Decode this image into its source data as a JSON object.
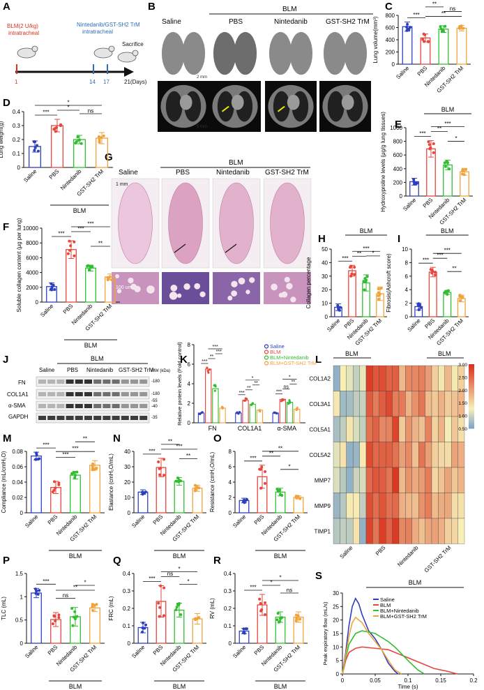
{
  "panels": {
    "A": {
      "letter": "A",
      "induction": "BLM(2 U/kg)",
      "induction_route": "intratracheal",
      "treatment": "Nintedanib/GST-SH2 TrM",
      "treatment_route": "intratracheal",
      "end": "Sacrifice",
      "day_1": "1",
      "day_14": "14",
      "day_17": "17",
      "day_end": "21(Days)"
    },
    "B": {
      "letter": "B",
      "group_bar": "BLM",
      "columns": [
        "Saline",
        "PBS",
        "Nintedanib",
        "GST-SH2 TrM"
      ],
      "scale_top": "2 mm",
      "scale_bottom": "5 mm"
    },
    "G": {
      "letter": "G",
      "group_bar": "BLM",
      "columns": [
        "Saline",
        "PBS",
        "Nintedanib",
        "GST-SH2 TrM"
      ],
      "scale_top": "1 mm",
      "scale_bottom": "100 um"
    },
    "J": {
      "letter": "J",
      "columns": [
        "Saline",
        "PBS",
        "Nintedanib",
        "GST-SH2 TrM"
      ],
      "group_bar": "BLM",
      "rows": [
        "FN",
        "COL1A1",
        "α-SMA",
        "GAPDH"
      ],
      "mw_header": "MW (kDa)",
      "mw": [
        "-180",
        "-180",
        "-55",
        "-40",
        "-35"
      ]
    },
    "L": {
      "letter": "L",
      "genes": [
        "COL1A2",
        "COL3A1",
        "COL5A1",
        "COL5A2",
        "MMP7",
        "MMP9",
        "TIMP1"
      ],
      "group_bar": "BLM",
      "groups": [
        "Saline",
        "PBS",
        "Nintedanib",
        "GST-SH2 TrM"
      ],
      "colorbar": [
        "3.00",
        "2.50",
        "2.00",
        "1.50",
        "1.00",
        "0.50"
      ],
      "colors": {
        "low": "#7fa6c9",
        "mid": "#f7f0b8",
        "high": "#d9331e"
      }
    }
  },
  "groups": [
    "Saline",
    "PBS",
    "Nintedanib",
    "GST-SH2 TrM"
  ],
  "group_colors": [
    "#2b3fbf",
    "#e8453c",
    "#2fbe2f",
    "#f0a33a"
  ],
  "blm_label": "BLM",
  "chart_data": [
    {
      "id": "C",
      "type": "bar",
      "ylabel": "Lung volume(mm³)",
      "ylim": [
        0,
        800
      ],
      "yticks": [
        0,
        200,
        400,
        600,
        800
      ],
      "values": [
        615,
        430,
        575,
        590
      ],
      "errors": [
        75,
        65,
        55,
        45
      ],
      "sig": [
        {
          "a": 0,
          "b": 1,
          "t": "***"
        },
        {
          "a": 1,
          "b": 3,
          "t": "**"
        },
        {
          "a": 2,
          "b": 3,
          "t": "ns"
        },
        {
          "a": 1,
          "b": 2,
          "t": "**"
        }
      ]
    },
    {
      "id": "D",
      "type": "bar",
      "ylabel": "Lung weight(g)",
      "ylim": [
        0,
        0.4
      ],
      "yticks": [
        0,
        0.1,
        0.2,
        0.3,
        0.4
      ],
      "values": [
        0.15,
        0.3,
        0.2,
        0.21
      ],
      "errors": [
        0.04,
        0.045,
        0.03,
        0.04
      ],
      "sig": [
        {
          "a": 0,
          "b": 1,
          "t": "***"
        },
        {
          "a": 1,
          "b": 2,
          "t": "*"
        },
        {
          "a": 0,
          "b": 3,
          "t": "*"
        },
        {
          "a": 2,
          "b": 3,
          "t": "ns"
        }
      ]
    },
    {
      "id": "E",
      "type": "bar",
      "ylabel": "Hydroxyproline levels (μg/g lung tissues)",
      "ylim": [
        0,
        1000
      ],
      "yticks": [
        0,
        200,
        400,
        600,
        800,
        1000
      ],
      "values": [
        210,
        690,
        455,
        355
      ],
      "errors": [
        50,
        120,
        70,
        50
      ],
      "sig": [
        {
          "a": 0,
          "b": 1,
          "t": "***"
        },
        {
          "a": 1,
          "b": 2,
          "t": "**"
        },
        {
          "a": 1,
          "b": 3,
          "t": "***"
        },
        {
          "a": 2,
          "b": 3,
          "t": "*"
        }
      ]
    },
    {
      "id": "F",
      "type": "bar",
      "ylabel": "Soluble collagen content (μg per lung)",
      "ylim": [
        0,
        10000
      ],
      "yticks": [
        0,
        2000,
        4000,
        6000,
        8000,
        10000
      ],
      "values": [
        2100,
        7100,
        4600,
        3400
      ],
      "errors": [
        500,
        1200,
        400,
        400
      ],
      "sig": [
        {
          "a": 0,
          "b": 1,
          "t": "***"
        },
        {
          "a": 1,
          "b": 2,
          "t": "***"
        },
        {
          "a": 1,
          "b": 3,
          "t": "***"
        },
        {
          "a": 2,
          "b": 3,
          "t": "**"
        }
      ]
    },
    {
      "id": "H",
      "type": "bar",
      "ylabel": "Collagen percentage",
      "ylim": [
        0,
        50
      ],
      "yticks": [
        0,
        10,
        20,
        30,
        40,
        50
      ],
      "values": [
        7,
        34,
        25,
        17
      ],
      "errors": [
        2.5,
        4,
        6,
        5
      ],
      "sig": [
        {
          "a": 0,
          "b": 1,
          "t": "***"
        },
        {
          "a": 1,
          "b": 2,
          "t": "**"
        },
        {
          "a": 1,
          "b": 3,
          "t": "***"
        },
        {
          "a": 2,
          "b": 3,
          "t": "*"
        }
      ]
    },
    {
      "id": "I",
      "type": "bar",
      "ylabel": "Fibrosis(Ashcroft score)",
      "ylim": [
        0,
        10
      ],
      "yticks": [
        0,
        2,
        4,
        6,
        8,
        10
      ],
      "values": [
        1.5,
        6.6,
        3.6,
        2.7
      ],
      "errors": [
        0.5,
        0.7,
        0.3,
        0.5
      ],
      "sig": [
        {
          "a": 0,
          "b": 1,
          "t": "***"
        },
        {
          "a": 1,
          "b": 2,
          "t": "***"
        },
        {
          "a": 1,
          "b": 3,
          "t": "***"
        },
        {
          "a": 2,
          "b": 3,
          "t": "**"
        }
      ]
    },
    {
      "id": "K",
      "type": "bar",
      "ylabel": "Relative protein levels (Fold control)",
      "ylim": [
        0,
        8
      ],
      "yticks": [
        0,
        2,
        4,
        6,
        8
      ],
      "categories": [
        "FN",
        "COL1A1",
        "α-SMA"
      ],
      "legend": [
        "Saline",
        "BLM",
        "BLM+Nintedanib",
        "BLM+GST-SH2 TrM"
      ],
      "series": [
        {
          "name": "Saline",
          "values": [
            1.0,
            1.0,
            1.0
          ]
        },
        {
          "name": "BLM",
          "values": [
            5.5,
            2.3,
            2.4
          ]
        },
        {
          "name": "BLM+Nintedanib",
          "values": [
            3.5,
            1.9,
            2.1
          ]
        },
        {
          "name": "BLM+GST-SH2 TrM",
          "values": [
            1.5,
            1.3,
            1.4
          ]
        }
      ],
      "sig_labels": [
        "***",
        "**",
        "***",
        "***",
        "***",
        "**",
        "**",
        "*",
        "***",
        "ns",
        "**",
        "*"
      ]
    },
    {
      "id": "M",
      "type": "bar",
      "ylabel": "Compliance (mL/cmH₂O)",
      "ylim": [
        0,
        0.08
      ],
      "yticks": [
        0,
        0.02,
        0.04,
        0.06,
        0.08
      ],
      "values": [
        0.074,
        0.033,
        0.049,
        0.062
      ],
      "errors": [
        0.005,
        0.008,
        0.005,
        0.006
      ],
      "sig": [
        {
          "a": 0,
          "b": 1,
          "t": "***"
        },
        {
          "a": 1,
          "b": 3,
          "t": "***"
        },
        {
          "a": 1,
          "b": 2,
          "t": "***"
        },
        {
          "a": 2,
          "b": 3,
          "t": "**"
        }
      ]
    },
    {
      "id": "N",
      "type": "bar",
      "ylabel": "Elastance (cmH₂O/mL)",
      "ylim": [
        0,
        40
      ],
      "yticks": [
        0,
        10,
        20,
        30,
        40
      ],
      "values": [
        13.5,
        29.5,
        20.5,
        16
      ],
      "errors": [
        1.5,
        6,
        2.5,
        2
      ],
      "sig": [
        {
          "a": 0,
          "b": 1,
          "t": "***"
        },
        {
          "a": 1,
          "b": 3,
          "t": "***"
        },
        {
          "a": 1,
          "b": 2,
          "t": "**"
        },
        {
          "a": 2,
          "b": 3,
          "t": "**"
        }
      ]
    },
    {
      "id": "O",
      "type": "bar",
      "ylabel": "Resistance (cmH₂O/mL)",
      "ylim": [
        0,
        8
      ],
      "yticks": [
        0,
        2,
        4,
        6,
        8
      ],
      "values": [
        1.6,
        4.7,
        2.7,
        2.0
      ],
      "errors": [
        0.3,
        1.5,
        0.5,
        0.2
      ],
      "sig": [
        {
          "a": 0,
          "b": 1,
          "t": "***"
        },
        {
          "a": 1,
          "b": 2,
          "t": "**"
        },
        {
          "a": 1,
          "b": 3,
          "t": "**"
        },
        {
          "a": 2,
          "b": 3,
          "t": "*"
        }
      ]
    },
    {
      "id": "P",
      "type": "bar",
      "ylabel": "TLC (mL)",
      "ylim": [
        0,
        1.5
      ],
      "yticks": [
        0,
        0.5,
        1.0,
        1.5
      ],
      "values": [
        1.08,
        0.51,
        0.57,
        0.76
      ],
      "errors": [
        0.1,
        0.15,
        0.2,
        0.08
      ],
      "sig": [
        {
          "a": 0,
          "b": 1,
          "t": "***"
        },
        {
          "a": 1,
          "b": 2,
          "t": "ns"
        },
        {
          "a": 1,
          "b": 3,
          "t": "**"
        },
        {
          "a": 2,
          "b": 3,
          "t": "*"
        }
      ]
    },
    {
      "id": "Q",
      "type": "bar",
      "ylabel": "FRC (mL)",
      "ylim": [
        0,
        0.4
      ],
      "yticks": [
        0,
        0.1,
        0.2,
        0.3,
        0.4
      ],
      "values": [
        0.09,
        0.24,
        0.19,
        0.14
      ],
      "errors": [
        0.03,
        0.09,
        0.04,
        0.03
      ],
      "sig": [
        {
          "a": 0,
          "b": 1,
          "t": "***"
        },
        {
          "a": 1,
          "b": 2,
          "t": "ns"
        },
        {
          "a": 1,
          "b": 3,
          "t": "*"
        },
        {
          "a": 2,
          "b": 3,
          "t": "*"
        }
      ]
    },
    {
      "id": "R",
      "type": "bar",
      "ylabel": "RV (mL)",
      "ylim": [
        0,
        0.4
      ],
      "yticks": [
        0,
        0.1,
        0.2,
        0.3,
        0.4
      ],
      "values": [
        0.07,
        0.22,
        0.15,
        0.15
      ],
      "errors": [
        0.015,
        0.06,
        0.03,
        0.03
      ],
      "sig": [
        {
          "a": 0,
          "b": 1,
          "t": "***"
        },
        {
          "a": 1,
          "b": 2,
          "t": "*"
        },
        {
          "a": 1,
          "b": 3,
          "t": "*"
        },
        {
          "a": 2,
          "b": 3,
          "t": "ns"
        }
      ]
    },
    {
      "id": "S",
      "type": "line",
      "xlabel": "Time (s)",
      "ylabel": "Peak expiratory flow (mL/s)",
      "xlim": [
        0,
        0.2
      ],
      "ylim": [
        0,
        30
      ],
      "xticks": [
        0,
        0.05,
        0.1,
        0.15,
        0.2
      ],
      "yticks": [
        0,
        5,
        10,
        15,
        20,
        25,
        30
      ],
      "group_bar": "BLM",
      "series": [
        {
          "name": "Saline",
          "color": "#2b3fbf",
          "x": [
            0,
            0.005,
            0.01,
            0.015,
            0.02,
            0.025,
            0.03,
            0.04,
            0.05,
            0.06,
            0.07,
            0.08,
            0.085
          ],
          "y": [
            0,
            8,
            18,
            25,
            28,
            26,
            22,
            16,
            13,
            9,
            4,
            1,
            0
          ]
        },
        {
          "name": "BLM",
          "color": "#e8453c",
          "x": [
            0,
            0.005,
            0.01,
            0.02,
            0.03,
            0.05,
            0.07,
            0.09,
            0.1,
            0.12,
            0.14,
            0.16,
            0.175
          ],
          "y": [
            0,
            5,
            8,
            9.5,
            10,
            9.5,
            9,
            7,
            6,
            4,
            2,
            1,
            0
          ]
        },
        {
          "name": "BLM+Nintedanib",
          "color": "#2fbe2f",
          "x": [
            0,
            0.005,
            0.01,
            0.02,
            0.03,
            0.05,
            0.07,
            0.08,
            0.1,
            0.115,
            0.125
          ],
          "y": [
            0,
            6,
            11,
            15,
            16,
            15,
            12,
            10,
            5,
            1.5,
            0
          ]
        },
        {
          "name": "BLM+GST-SH2 TrM",
          "color": "#f0a33a",
          "x": [
            0,
            0.005,
            0.01,
            0.015,
            0.02,
            0.03,
            0.04,
            0.05,
            0.06,
            0.07,
            0.08,
            0.09
          ],
          "y": [
            0,
            7,
            14,
            19,
            21,
            19,
            15,
            12,
            9,
            5,
            1.5,
            0
          ]
        }
      ]
    }
  ]
}
